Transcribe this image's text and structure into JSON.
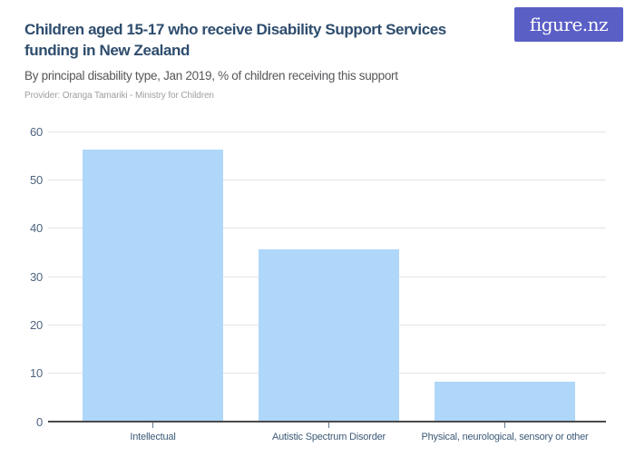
{
  "header": {
    "title": "Children aged 15-17 who receive Disability Support Services funding in New Zealand",
    "subtitle": "By principal disability type, Jan 2019, % of children receiving this support",
    "provider": "Provider: Oranga Tamariki - Ministry for Children"
  },
  "logo": {
    "text": "figure.nz",
    "bg_color": "#5a5fc6",
    "text_color": "#ffffff"
  },
  "colors": {
    "title": "#2e4d6d",
    "subtitle": "#57575a",
    "provider": "#9e9e9e",
    "axis_labels": "#4d6480",
    "category_labels": "#3d5a78",
    "gridline": "#e4e4e4",
    "axis_line": "#4a4a4a",
    "bar": "#aed7fa"
  },
  "chart_data": {
    "type": "bar",
    "title": "Children aged 15-17 who receive Disability Support Services funding in New Zealand",
    "subtitle": "By principal disability type, Jan 2019, % of children receiving this support",
    "categories": [
      "Intellectual",
      "Autistic Spectrum Disorder",
      "Physical, neurological, sensory or other"
    ],
    "values": [
      56.3,
      35.6,
      8.2
    ],
    "xlabel": "",
    "ylabel": "",
    "ylim": [
      0,
      60
    ],
    "ytick_step": 10,
    "yticks": [
      0,
      10,
      20,
      30,
      40,
      50,
      60
    ],
    "grid": true,
    "legend": false,
    "bar_color": "#aed7fa"
  }
}
